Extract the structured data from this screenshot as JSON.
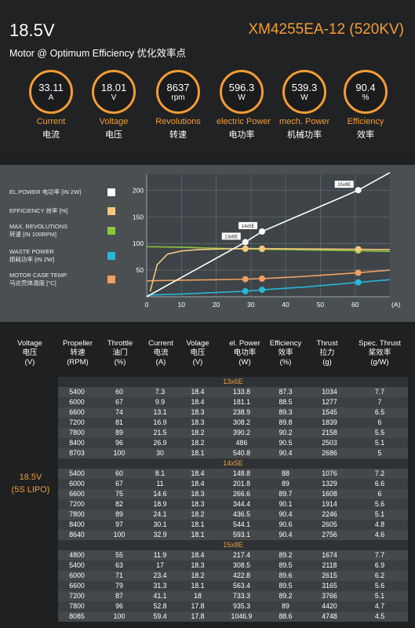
{
  "header": {
    "voltage": "18.5V",
    "model": "XM4255EA-12 (520KV)",
    "subtitle": "Motor @ Optimum Efficiency  优化效率点"
  },
  "gauges": [
    {
      "value": "33.11",
      "unit": "A",
      "en": "Current",
      "zh": "电流"
    },
    {
      "value": "18.01",
      "unit": "V",
      "en": "Voltage",
      "zh": "电压"
    },
    {
      "value": "8637",
      "unit": "rpm",
      "en": "Revolutions",
      "zh": "转速"
    },
    {
      "value": "596.3",
      "unit": "W",
      "en": "electric Power",
      "zh": "电功率"
    },
    {
      "value": "539.3",
      "unit": "W",
      "en": "mech. Power",
      "zh": "机械功率"
    },
    {
      "value": "90.4",
      "unit": "%",
      "en": "Efficiency",
      "zh": "效率"
    }
  ],
  "legend": [
    {
      "line1": "EL.POWER 电功率 [IN 2W]",
      "line2": "",
      "color": "#ffffff"
    },
    {
      "line1": "EFFICIENCY 效率 [%]",
      "line2": "",
      "color": "#f5c77e"
    },
    {
      "line1": "MAX. REVOLUTIONS",
      "line2": "转速 [IN 100RPM]",
      "color": "#8dc63f"
    },
    {
      "line1": "WASTE POWER",
      "line2": "损耗功率 [IN 2W]",
      "color": "#29b6d8"
    },
    {
      "line1": "MOTOR CASE TEMP.",
      "line2": "马达壳体温度 [°C]",
      "color": "#f0a060"
    }
  ],
  "chart_data": {
    "type": "line",
    "xlabel": "(A)",
    "xlim": [
      0,
      70
    ],
    "ylim": [
      0,
      230
    ],
    "xticks": [
      0,
      10,
      20,
      30,
      40,
      50,
      60
    ],
    "yticks": [
      50,
      100,
      150,
      200
    ],
    "grid": true,
    "series": [
      {
        "name": "EL.POWER 电功率 [IN 2W]",
        "color": "#ffffff",
        "x": [
          0,
          28.4,
          33.2,
          60.9,
          70
        ],
        "y": [
          0,
          102.6,
          122.5,
          200.2,
          233
        ]
      },
      {
        "name": "EFFICIENCY 效率 [%]",
        "color": "#f5c77e",
        "x": [
          1,
          3,
          6,
          10,
          15,
          20,
          28.4,
          33.2,
          45,
          60.9,
          70
        ],
        "y": [
          10,
          60,
          80,
          86,
          88.5,
          89.5,
          90.4,
          90.4,
          89.8,
          89.2,
          88.5
        ]
      },
      {
        "name": "MAX. REVOLUTIONS",
        "color": "#8dc63f",
        "x": [
          0,
          10,
          20,
          28.4,
          33.2,
          45,
          60.9,
          70
        ],
        "y": [
          94,
          93,
          91,
          89.9,
          89.3,
          88,
          86.5,
          85
        ]
      },
      {
        "name": "WASTE POWER",
        "color": "#29b6d8",
        "x": [
          0,
          10,
          20,
          28.4,
          33.2,
          45,
          60.9,
          70
        ],
        "y": [
          3,
          5,
          8,
          10.3,
          13,
          18,
          27,
          32
        ]
      },
      {
        "name": "MOTOR CASE TEMP.",
        "color": "#f0a060",
        "x": [
          0,
          10,
          20,
          28.4,
          33.2,
          45,
          60.9,
          70
        ],
        "y": [
          30,
          31,
          32,
          33,
          34,
          38,
          45,
          50
        ]
      }
    ],
    "annotations": [
      {
        "text": "13x6E",
        "x": 28.4,
        "y": 102.6
      },
      {
        "text": "14x5E",
        "x": 33.2,
        "y": 122.5
      },
      {
        "text": "15x8E",
        "x": 60.9,
        "y": 200.2
      }
    ]
  },
  "table": {
    "headers": [
      {
        "en": "Voltage",
        "zh": "电压",
        "unit": "(V)"
      },
      {
        "en": "Propeller",
        "zh": "转速",
        "unit": "(RPM)"
      },
      {
        "en": "Throttle",
        "zh": "油门",
        "unit": "(%)"
      },
      {
        "en": "Current",
        "zh": "电流",
        "unit": "(A)"
      },
      {
        "en": "Volage",
        "zh": "电压",
        "unit": "(V)"
      },
      {
        "en": "el. Power",
        "zh": "电功率",
        "unit": "(W)"
      },
      {
        "en": "Efficiency",
        "zh": "效率",
        "unit": "(%)"
      },
      {
        "en": "Thrust",
        "zh": "拉力",
        "unit": "(g)"
      },
      {
        "en": "Spec. Thrust",
        "zh": "桨效率",
        "unit": "(g/W)"
      }
    ],
    "side_label": [
      "18.5V",
      "(5S LIPO)"
    ],
    "groups": [
      {
        "name": "13x6E",
        "rows": [
          [
            "5400",
            "60",
            "7.3",
            "18.4",
            "133.8",
            "87.3",
            "1034",
            "7.7"
          ],
          [
            "6000",
            "67",
            "9.9",
            "18.4",
            "181.1",
            "88.5",
            "1277",
            "7"
          ],
          [
            "6600",
            "74",
            "13.1",
            "18.3",
            "238.9",
            "89.3",
            "1545",
            "6.5"
          ],
          [
            "7200",
            "81",
            "16.9",
            "18.3",
            "308.2",
            "89.8",
            "1839",
            "6"
          ],
          [
            "7800",
            "89",
            "21.5",
            "18.2",
            "390.2",
            "90.2",
            "2158",
            "5.5"
          ],
          [
            "8400",
            "96",
            "26.9",
            "18.2",
            "486",
            "90.5",
            "2503",
            "5.1"
          ],
          [
            "8703",
            "100",
            "30",
            "18.1",
            "540.8",
            "90.4",
            "2686",
            "5"
          ]
        ]
      },
      {
        "name": "14x5E",
        "rows": [
          [
            "5400",
            "60",
            "8.1",
            "18.4",
            "148.8",
            "88",
            "1076",
            "7.2"
          ],
          [
            "6000",
            "67",
            "11",
            "18.4",
            "201.8",
            "89",
            "1329",
            "6.6"
          ],
          [
            "6600",
            "75",
            "14.6",
            "18.3",
            "266.6",
            "89.7",
            "1608",
            "6"
          ],
          [
            "7200",
            "82",
            "18.9",
            "18.3",
            "344.4",
            "90.1",
            "1914",
            "5.6"
          ],
          [
            "7800",
            "89",
            "24.1",
            "18.2",
            "436.5",
            "90.4",
            "2246",
            "5.1"
          ],
          [
            "8400",
            "97",
            "30.1",
            "18.1",
            "544.1",
            "90.6",
            "2605",
            "4.8"
          ],
          [
            "8640",
            "100",
            "32.9",
            "18.1",
            "593.1",
            "90.4",
            "2756",
            "4.6"
          ]
        ]
      },
      {
        "name": "15x8E",
        "rows": [
          [
            "4800",
            "55",
            "11.9",
            "18.4",
            "217.4",
            "89.2",
            "1674",
            "7.7"
          ],
          [
            "5400",
            "63",
            "17",
            "18.3",
            "308.5",
            "89.5",
            "2118",
            "6.9"
          ],
          [
            "6000",
            "71",
            "23.4",
            "18.2",
            "422.8",
            "89.6",
            "2615",
            "6.2"
          ],
          [
            "6600",
            "79",
            "31.3",
            "18.1",
            "563.4",
            "89.5",
            "3165",
            "5.6"
          ],
          [
            "7200",
            "87",
            "41.1",
            "18",
            "733.3",
            "89.2",
            "3766",
            "5.1"
          ],
          [
            "7800",
            "96",
            "52.8",
            "17.8",
            "935.3",
            "89",
            "4420",
            "4.7"
          ],
          [
            "8085",
            "100",
            "59.4",
            "17.8",
            "1046.9",
            "88.6",
            "4748",
            "4.5"
          ]
        ]
      }
    ]
  }
}
